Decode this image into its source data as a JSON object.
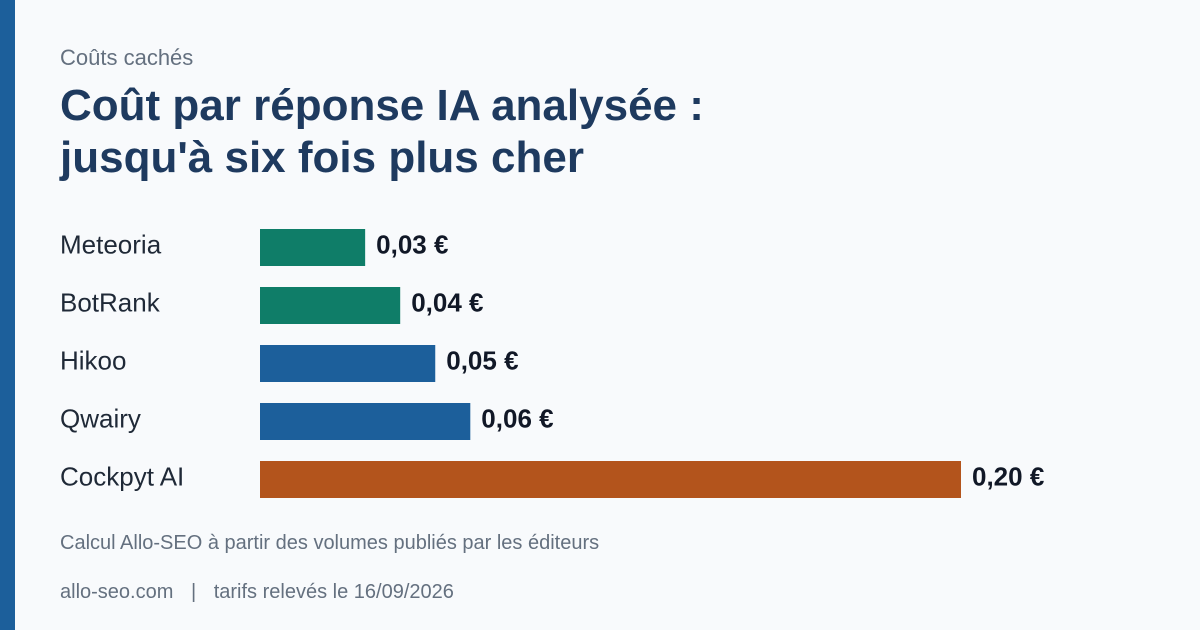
{
  "colors": {
    "accent": "#1c5f9b",
    "background": "#f8fafc",
    "title": "#1e3a5f",
    "muted": "#64707f"
  },
  "eyebrow": "Coûts cachés",
  "title_lines": [
    "Coût par réponse IA analysée :",
    "jusqu'à six fois plus cher"
  ],
  "chart_data": {
    "type": "bar",
    "orientation": "horizontal",
    "title": "Coût par réponse IA analysée : jusqu'à six fois plus cher",
    "categories": [
      "Meteoria",
      "BotRank",
      "Hikoo",
      "Qwairy",
      "Cockpyt AI"
    ],
    "values": [
      0.03,
      0.04,
      0.05,
      0.06,
      0.2
    ],
    "value_labels": [
      "0,03 €",
      "0,04 €",
      "0,05 €",
      "0,06 €",
      "0,20 €"
    ],
    "bar_colors": [
      "#0f7d68",
      "#0f7d68",
      "#1c5f9b",
      "#1c5f9b",
      "#b3541c"
    ],
    "xlabel": "",
    "ylabel": "",
    "xlim": [
      0,
      0.2
    ],
    "grid": false,
    "legend": "none"
  },
  "source_note": "Calcul Allo-SEO à partir des volumes publiés par les éditeurs",
  "footer": {
    "site": "allo-seo.com",
    "separator": "|",
    "date_note": "tarifs relevés le 16/09/2026"
  }
}
